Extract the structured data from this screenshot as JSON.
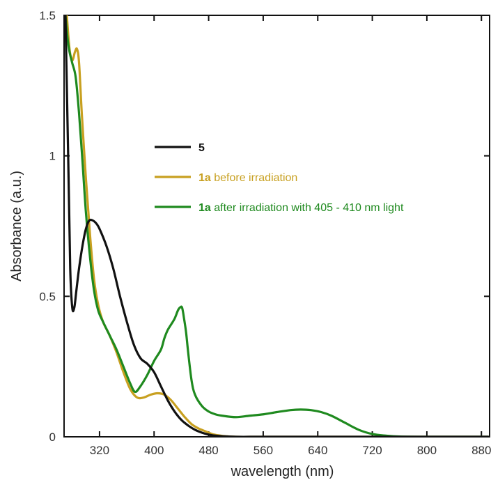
{
  "chart_data": {
    "type": "line",
    "xlabel": "wavelength (nm)",
    "ylabel": "Absorbance (a.u.)",
    "xlim": [
      268,
      892
    ],
    "ylim": [
      0,
      1.5
    ],
    "x_ticks": [
      320,
      400,
      480,
      560,
      640,
      720,
      800,
      880
    ],
    "x_tick_labels": [
      "320",
      "400",
      "480",
      "560",
      "640",
      "720",
      "800",
      "880"
    ],
    "y_ticks": [
      0,
      0.5,
      1,
      1.5
    ],
    "y_tick_labels": [
      "0",
      "0.5",
      "1",
      "1.5"
    ],
    "legend_position": "center-right",
    "series": [
      {
        "name": "5",
        "legend_bold": "5",
        "legend_rest": "",
        "color": "#111111",
        "x": [
          270,
          274,
          277,
          280,
          283,
          286,
          290,
          295,
          300,
          305,
          310,
          315,
          320,
          330,
          340,
          350,
          360,
          370,
          380,
          390,
          400,
          410,
          420,
          430,
          440,
          450,
          460,
          470,
          480,
          490,
          500,
          520,
          560,
          640,
          720,
          800,
          890
        ],
        "y": [
          1.5,
          1.0,
          0.6,
          0.46,
          0.46,
          0.52,
          0.6,
          0.68,
          0.74,
          0.77,
          0.77,
          0.76,
          0.74,
          0.68,
          0.6,
          0.5,
          0.41,
          0.33,
          0.28,
          0.26,
          0.23,
          0.18,
          0.13,
          0.09,
          0.06,
          0.04,
          0.025,
          0.015,
          0.008,
          0.004,
          0.002,
          0.0,
          0.0,
          0.0,
          0.0,
          0.0,
          0.0
        ]
      },
      {
        "name": "1a before irradiation",
        "legend_bold": "1a",
        "legend_rest": "before irradiation",
        "color": "#c8a020",
        "x": [
          272,
          276,
          280,
          284,
          287,
          290,
          294,
          300,
          306,
          312,
          318,
          325,
          335,
          345,
          355,
          365,
          375,
          385,
          395,
          405,
          415,
          425,
          435,
          445,
          455,
          465,
          475,
          485,
          495,
          505,
          520,
          560,
          640,
          720,
          800,
          890
        ],
        "y": [
          1.5,
          1.38,
          1.34,
          1.37,
          1.38,
          1.33,
          1.15,
          0.92,
          0.72,
          0.56,
          0.47,
          0.41,
          0.36,
          0.3,
          0.23,
          0.17,
          0.14,
          0.14,
          0.15,
          0.155,
          0.15,
          0.13,
          0.1,
          0.07,
          0.045,
          0.03,
          0.02,
          0.01,
          0.005,
          0.002,
          0.0,
          0.0,
          0.0,
          0.0,
          0.0,
          0.0
        ]
      },
      {
        "name": "1a after irradiation with 405 - 410 nm light",
        "legend_bold": "1a",
        "legend_rest": "after irradiation with 405 - 410 nm light",
        "color": "#1f8a1f",
        "x": [
          270,
          273,
          276,
          280,
          285,
          290,
          295,
          300,
          306,
          312,
          318,
          325,
          335,
          345,
          355,
          365,
          372,
          380,
          390,
          400,
          410,
          415,
          420,
          425,
          430,
          435,
          438,
          441,
          444,
          447,
          450,
          455,
          460,
          470,
          480,
          490,
          500,
          520,
          540,
          560,
          580,
          600,
          615,
          630,
          645,
          660,
          680,
          700,
          720,
          740,
          760,
          800,
          890
        ],
        "y": [
          1.5,
          1.42,
          1.37,
          1.33,
          1.28,
          1.15,
          0.98,
          0.8,
          0.64,
          0.52,
          0.45,
          0.41,
          0.36,
          0.31,
          0.25,
          0.19,
          0.16,
          0.18,
          0.22,
          0.27,
          0.31,
          0.35,
          0.38,
          0.4,
          0.42,
          0.45,
          0.46,
          0.46,
          0.42,
          0.37,
          0.3,
          0.2,
          0.15,
          0.11,
          0.09,
          0.08,
          0.075,
          0.07,
          0.075,
          0.08,
          0.088,
          0.095,
          0.097,
          0.095,
          0.088,
          0.075,
          0.05,
          0.025,
          0.01,
          0.004,
          0.001,
          0.0,
          0.0
        ]
      }
    ]
  }
}
